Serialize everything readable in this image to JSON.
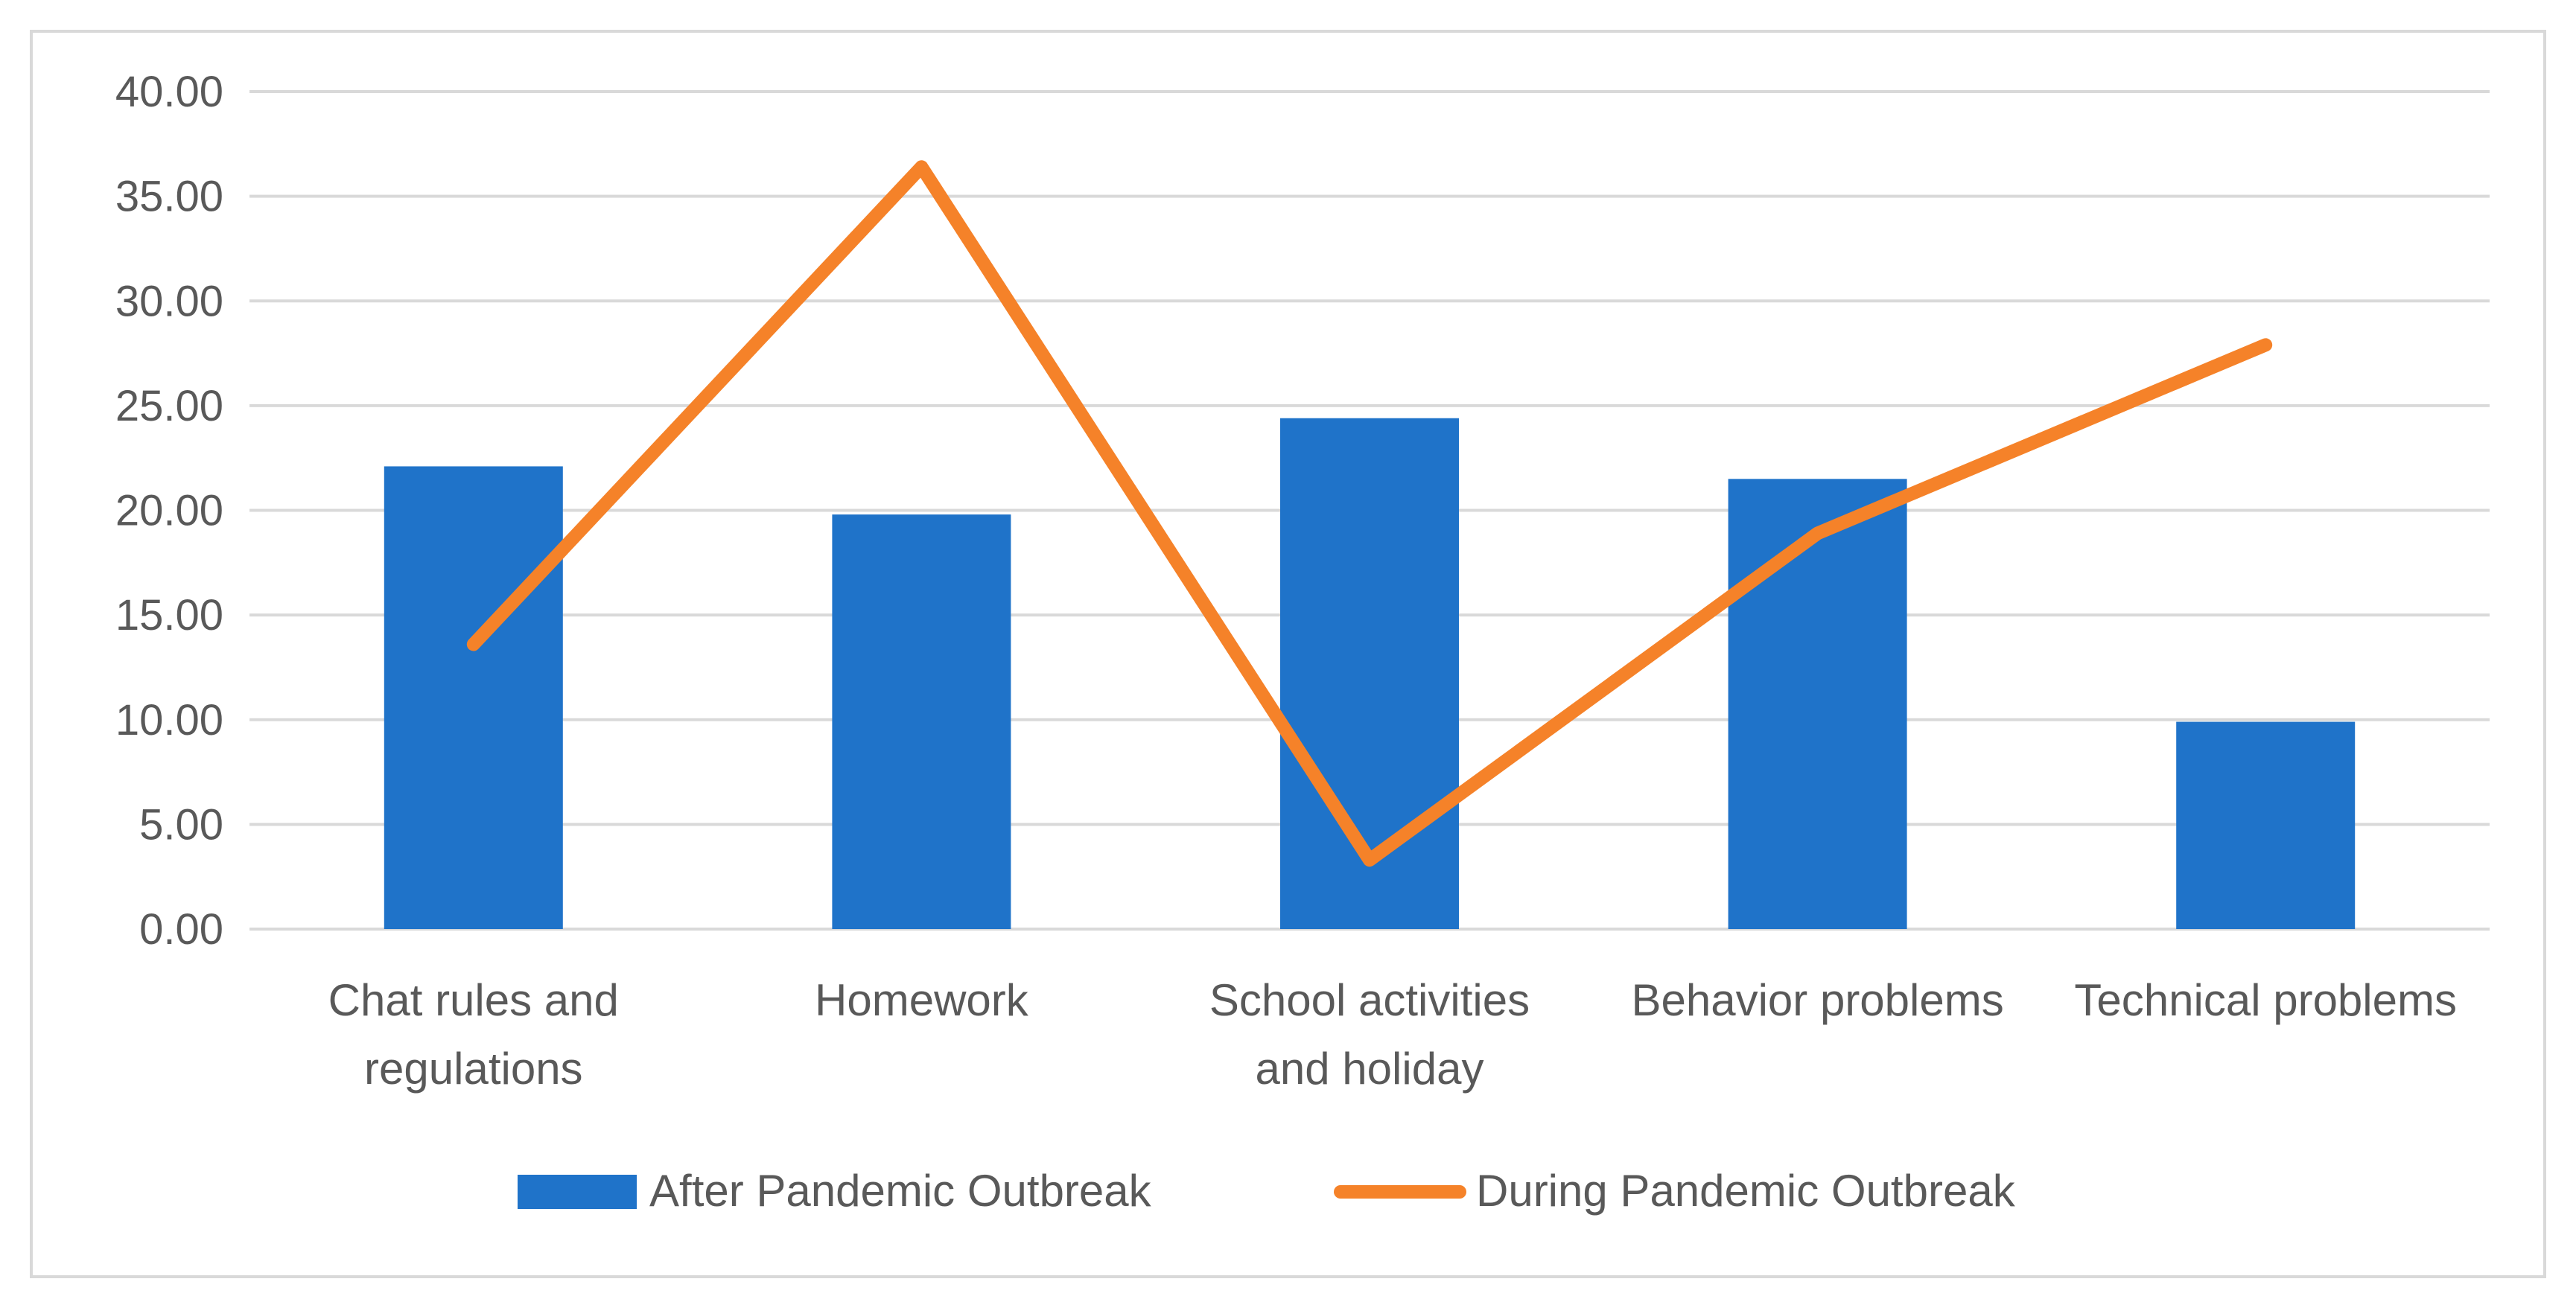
{
  "chart_data": {
    "type": "bar",
    "categories": [
      [
        "Chat rules and",
        "regulations"
      ],
      [
        "Homework"
      ],
      [
        "School activities",
        "and holiday"
      ],
      [
        "Behavior problems"
      ],
      [
        "Technical problems"
      ]
    ],
    "series": [
      {
        "name": "After Pandemic Outbreak",
        "type": "bar",
        "color": "#1f73c9",
        "values": [
          22.1,
          19.8,
          24.4,
          21.5,
          9.9
        ]
      },
      {
        "name": "During Pandemic Outbreak",
        "type": "line",
        "color": "#f58229",
        "values": [
          13.6,
          36.4,
          3.3,
          18.9,
          27.9
        ]
      }
    ],
    "y_ticks": [
      "0.00",
      "5.00",
      "10.00",
      "15.00",
      "20.00",
      "25.00",
      "30.00",
      "35.00",
      "40.00"
    ],
    "ylim": [
      0,
      40
    ],
    "grid": true,
    "legend_position": "bottom",
    "title": "",
    "xlabel": "",
    "ylabel": ""
  }
}
